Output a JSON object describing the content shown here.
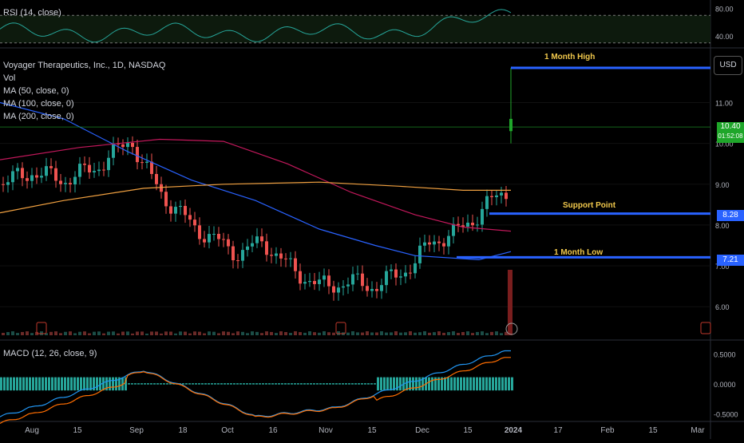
{
  "instrument": {
    "title": "Voyager Therapeutics, Inc., 1D, NASDAQ",
    "vol_label": "Vol",
    "ma50_label": "MA (50, close, 0)",
    "ma100_label": "MA (100, close, 0)",
    "ma200_label": "MA (200, close, 0)",
    "currency": "USD"
  },
  "rsi": {
    "label": "RSI (14, close)",
    "ticks": [
      "80.00",
      "40.00"
    ]
  },
  "macd": {
    "label": "MACD (12, 26, close, 9)",
    "ticks": [
      "0.5000",
      "0.0000",
      "-0.5000"
    ]
  },
  "annotations": {
    "month_high": "1 Month High",
    "support_point": "Support Point",
    "month_low": "1 Month Low"
  },
  "price_tags": {
    "last_price": "10.40",
    "countdown": "01:52:08",
    "support": "8.28",
    "low": "7.21"
  },
  "colors": {
    "up": "#26a69a",
    "down": "#ef5350",
    "ma50": "#2962ff",
    "ma100": "#c2185b",
    "ma200": "#f0a040",
    "level_line": "#2962ff",
    "annotation": "#f2c94c",
    "last_price": "#1fa62a"
  },
  "chart_data": {
    "type": "candlestick",
    "title": "Voyager Therapeutics, Inc., 1D, NASDAQ",
    "price_axis": {
      "ticks": [
        "11.00",
        "10.00",
        "9.00",
        "8.00",
        "7.00",
        "6.00"
      ],
      "range": [
        5.3,
        12.3
      ]
    },
    "time_axis": {
      "ticks": [
        "Aug",
        "15",
        "Sep",
        "18",
        "Oct",
        "16",
        "Nov",
        "15",
        "Dec",
        "15",
        "2024",
        "17",
        "Feb",
        "15",
        "Mar"
      ]
    },
    "levels": [
      {
        "name": "1 Month High",
        "value": 11.85
      },
      {
        "name": "Support Point",
        "value": 8.28
      },
      {
        "name": "1 Month Low",
        "value": 7.21
      }
    ],
    "last_price": 10.4,
    "moving_averages": [
      {
        "name": "MA (50, close, 0)",
        "start": 11.0,
        "end": 7.3
      },
      {
        "name": "MA (100, close, 0)",
        "start": 9.6,
        "end": 7.85
      },
      {
        "name": "MA (200, close, 0)",
        "start": 8.3,
        "end": 8.85
      }
    ],
    "rsi_range": [
      25,
      90
    ],
    "rsi_levels": [
      70,
      30
    ],
    "macd_range": [
      -0.6,
      0.65
    ]
  }
}
